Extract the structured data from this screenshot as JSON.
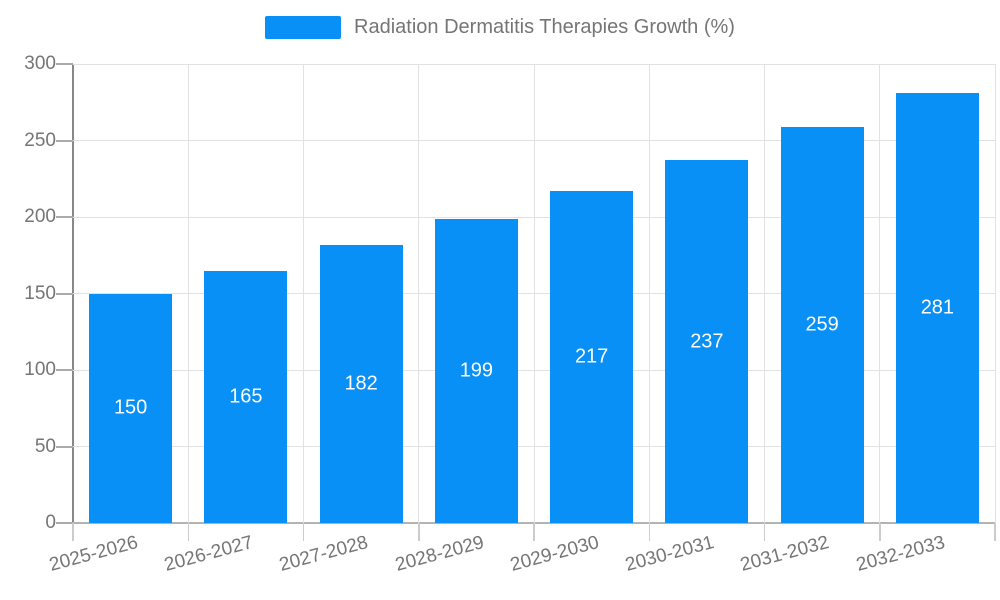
{
  "legend": {
    "label": "Radiation Dermatitis Therapies Growth (%)"
  },
  "chart_data": {
    "type": "bar",
    "title": "Radiation Dermatitis Therapies Growth (%)",
    "categories": [
      "2025-2026",
      "2026-2027",
      "2027-2028",
      "2028-2029",
      "2029-2030",
      "2030-2031",
      "2031-2032",
      "2032-2033"
    ],
    "values": [
      150,
      165,
      182,
      199,
      217,
      237,
      259,
      281
    ],
    "series": [
      {
        "name": "Radiation Dermatitis Therapies Growth (%)",
        "values": [
          150,
          165,
          182,
          199,
          217,
          237,
          259,
          281
        ]
      }
    ],
    "xlabel": "",
    "ylabel": "",
    "ylim": [
      0,
      300
    ],
    "yticks": [
      0,
      50,
      100,
      150,
      200,
      250,
      300
    ],
    "grid": true,
    "legend_position": "top",
    "value_labels": "inside-center",
    "colors": {
      "bar": "#0890f6",
      "value_label": "#ffffff",
      "grid": "#e2e2e2",
      "axis": "#999999",
      "text": "#757575"
    }
  }
}
